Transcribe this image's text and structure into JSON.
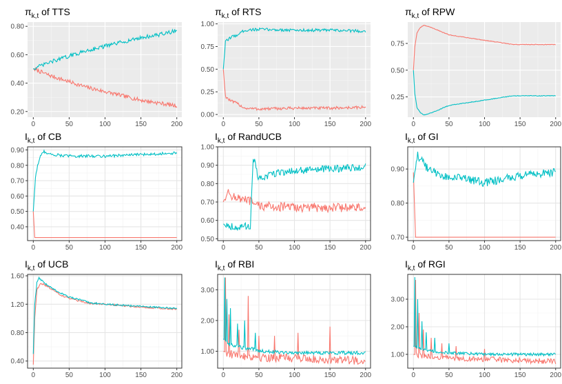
{
  "figure": {
    "colors": {
      "series_a": "#F8766D",
      "series_b": "#00BFC4"
    }
  },
  "chart_data": [
    {
      "type": "line",
      "theme": "gray",
      "title": {
        "symbol": "π",
        "sub": "k,t",
        "rest": " of TTS"
      },
      "xlim": [
        -8,
        207
      ],
      "ylim": [
        0.16,
        0.83
      ],
      "xticks": [
        0,
        50,
        100,
        150,
        200
      ],
      "xtick_labels": [
        "0",
        "50",
        "100",
        "150",
        "200"
      ],
      "yticks": [
        0.2,
        0.4,
        0.6,
        0.8
      ],
      "ytick_labels": [
        "0.20",
        "0.40",
        "0.60",
        "0.80"
      ],
      "series": [
        {
          "color": "#F8766D",
          "points": [
            [
              0,
              0.5
            ],
            [
              25,
              0.45
            ],
            [
              50,
              0.41
            ],
            [
              75,
              0.37
            ],
            [
              100,
              0.34
            ],
            [
              125,
              0.31
            ],
            [
              150,
              0.28
            ],
            [
              175,
              0.26
            ],
            [
              200,
              0.24
            ]
          ],
          "noise": 0.014
        },
        {
          "color": "#00BFC4",
          "points": [
            [
              0,
              0.5
            ],
            [
              25,
              0.55
            ],
            [
              50,
              0.59
            ],
            [
              75,
              0.63
            ],
            [
              100,
              0.66
            ],
            [
              125,
              0.69
            ],
            [
              150,
              0.72
            ],
            [
              175,
              0.74
            ],
            [
              200,
              0.77
            ]
          ],
          "noise": 0.014
        }
      ]
    },
    {
      "type": "line",
      "theme": "gray",
      "title": {
        "symbol": "π",
        "sub": "k,t",
        "rest": " of RTS"
      },
      "xlim": [
        -8,
        207
      ],
      "ylim": [
        -0.03,
        1.02
      ],
      "xticks": [
        0,
        50,
        100,
        150,
        200
      ],
      "xtick_labels": [
        "0",
        "50",
        "100",
        "150",
        "200"
      ],
      "yticks": [
        0,
        0.25,
        0.5,
        0.75,
        1
      ],
      "ytick_labels": [
        "0.00",
        "0.25",
        "0.50",
        "0.75",
        "1.00"
      ],
      "series": [
        {
          "color": "#F8766D",
          "points": [
            [
              0,
              0.5
            ],
            [
              3,
              0.2
            ],
            [
              10,
              0.15
            ],
            [
              20,
              0.12
            ],
            [
              30,
              0.07
            ],
            [
              50,
              0.06
            ],
            [
              100,
              0.07
            ],
            [
              150,
              0.07
            ],
            [
              200,
              0.08
            ]
          ],
          "noise": 0.016
        },
        {
          "color": "#00BFC4",
          "points": [
            [
              0,
              0.5
            ],
            [
              3,
              0.8
            ],
            [
              10,
              0.85
            ],
            [
              20,
              0.88
            ],
            [
              30,
              0.93
            ],
            [
              50,
              0.94
            ],
            [
              100,
              0.93
            ],
            [
              150,
              0.93
            ],
            [
              200,
              0.92
            ]
          ],
          "noise": 0.016
        }
      ]
    },
    {
      "type": "line",
      "theme": "gray",
      "title": {
        "symbol": "π",
        "sub": "k,t",
        "rest": " of RPW"
      },
      "xlim": [
        -8,
        207
      ],
      "ylim": [
        0.06,
        0.95
      ],
      "xticks": [
        0,
        50,
        100,
        150,
        200
      ],
      "xtick_labels": [
        "0",
        "50",
        "100",
        "150",
        "200"
      ],
      "yticks": [
        0.25,
        0.5,
        0.75
      ],
      "ytick_labels": [
        "0.25",
        "0.50",
        "0.75"
      ],
      "series": [
        {
          "color": "#F8766D",
          "points": [
            [
              0,
              0.5
            ],
            [
              2,
              0.72
            ],
            [
              5,
              0.85
            ],
            [
              10,
              0.9
            ],
            [
              15,
              0.92
            ],
            [
              25,
              0.9
            ],
            [
              50,
              0.83
            ],
            [
              100,
              0.78
            ],
            [
              140,
              0.74
            ],
            [
              200,
              0.74
            ]
          ],
          "noise": 0.003
        },
        {
          "color": "#00BFC4",
          "points": [
            [
              0,
              0.5
            ],
            [
              2,
              0.28
            ],
            [
              5,
              0.15
            ],
            [
              10,
              0.1
            ],
            [
              15,
              0.08
            ],
            [
              25,
              0.1
            ],
            [
              50,
              0.17
            ],
            [
              100,
              0.22
            ],
            [
              140,
              0.26
            ],
            [
              200,
              0.26
            ]
          ],
          "noise": 0.003
        }
      ]
    },
    {
      "type": "line",
      "theme": "bw",
      "title": {
        "symbol": "I",
        "sub": "k,t",
        "rest": " of CB"
      },
      "xlim": [
        -8,
        207
      ],
      "ylim": [
        0.31,
        0.92
      ],
      "xticks": [
        0,
        50,
        100,
        150,
        200
      ],
      "xtick_labels": [
        "0",
        "50",
        "100",
        "150",
        "200"
      ],
      "yticks": [
        0.4,
        0.5,
        0.6,
        0.7,
        0.8,
        0.9
      ],
      "ytick_labels": [
        "0.40",
        "0.50",
        "0.60",
        "0.70",
        "0.80",
        "0.90"
      ],
      "series": [
        {
          "color": "#F8766D",
          "points": [
            [
              0,
              0.5
            ],
            [
              2,
              0.33
            ],
            [
              200,
              0.33
            ]
          ],
          "noise": 0
        },
        {
          "color": "#00BFC4",
          "points": [
            [
              0,
              0.5
            ],
            [
              3,
              0.72
            ],
            [
              6,
              0.8
            ],
            [
              10,
              0.86
            ],
            [
              15,
              0.89
            ],
            [
              25,
              0.87
            ],
            [
              50,
              0.86
            ],
            [
              100,
              0.86
            ],
            [
              150,
              0.87
            ],
            [
              200,
              0.88
            ]
          ],
          "noise": 0.009
        }
      ]
    },
    {
      "type": "line",
      "theme": "bw",
      "title": {
        "symbol": "I",
        "sub": "k,t",
        "rest": " of RandUCB"
      },
      "xlim": [
        -8,
        207
      ],
      "ylim": [
        0.49,
        1.0
      ],
      "xticks": [
        0,
        50,
        100,
        150,
        200
      ],
      "xtick_labels": [
        "0",
        "50",
        "100",
        "150",
        "200"
      ],
      "yticks": [
        0.5,
        0.6,
        0.7,
        0.8,
        0.9,
        1.0
      ],
      "ytick_labels": [
        "0.50",
        "0.60",
        "0.70",
        "0.80",
        "0.90",
        "1.00"
      ],
      "series": [
        {
          "color": "#F8766D",
          "points": [
            [
              0,
              0.7
            ],
            [
              5,
              0.75
            ],
            [
              20,
              0.72
            ],
            [
              40,
              0.7
            ],
            [
              45,
              0.68
            ],
            [
              100,
              0.67
            ],
            [
              150,
              0.67
            ],
            [
              200,
              0.67
            ]
          ],
          "noise": 0.025
        },
        {
          "color": "#00BFC4",
          "points": [
            [
              0,
              0.58
            ],
            [
              20,
              0.56
            ],
            [
              38,
              0.57
            ],
            [
              42,
              0.95
            ],
            [
              50,
              0.82
            ],
            [
              75,
              0.86
            ],
            [
              100,
              0.87
            ],
            [
              150,
              0.88
            ],
            [
              200,
              0.89
            ]
          ],
          "noise": 0.02
        }
      ]
    },
    {
      "type": "line",
      "theme": "bw",
      "title": {
        "symbol": "I",
        "sub": "k,t",
        "rest": " of GI"
      },
      "xlim": [
        -8,
        207
      ],
      "ylim": [
        0.69,
        0.965
      ],
      "xticks": [
        0,
        50,
        100,
        150,
        200
      ],
      "xtick_labels": [
        "0",
        "50",
        "100",
        "150",
        "200"
      ],
      "yticks": [
        0.7,
        0.8,
        0.9
      ],
      "ytick_labels": [
        "0.70",
        "0.80",
        "0.90"
      ],
      "series": [
        {
          "color": "#F8766D",
          "points": [
            [
              0,
              0.89
            ],
            [
              3,
              0.7
            ],
            [
              200,
              0.7
            ]
          ],
          "noise": 0
        },
        {
          "color": "#00BFC4",
          "points": [
            [
              0,
              0.86
            ],
            [
              3,
              0.91
            ],
            [
              6,
              0.94
            ],
            [
              10,
              0.93
            ],
            [
              20,
              0.9
            ],
            [
              40,
              0.88
            ],
            [
              75,
              0.87
            ],
            [
              100,
              0.86
            ],
            [
              150,
              0.88
            ],
            [
              200,
              0.89
            ]
          ],
          "noise": 0.012
        }
      ]
    },
    {
      "type": "line",
      "theme": "bw",
      "title": {
        "symbol": "I",
        "sub": "k,t",
        "rest": " of UCB"
      },
      "xlim": [
        -8,
        207
      ],
      "ylim": [
        0.3,
        1.62
      ],
      "xticks": [
        0,
        50,
        100,
        150,
        200
      ],
      "xtick_labels": [
        "0",
        "50",
        "100",
        "150",
        "200"
      ],
      "yticks": [
        0.4,
        0.8,
        1.2,
        1.6
      ],
      "ytick_labels": [
        "0.40",
        "0.80",
        "1.20",
        "1.60"
      ],
      "series": [
        {
          "color": "#F8766D",
          "points": [
            [
              0,
              0.35
            ],
            [
              2,
              1.0
            ],
            [
              5,
              1.4
            ],
            [
              10,
              1.5
            ],
            [
              20,
              1.45
            ],
            [
              40,
              1.32
            ],
            [
              60,
              1.25
            ],
            [
              80,
              1.21
            ],
            [
              100,
              1.2
            ],
            [
              150,
              1.16
            ],
            [
              200,
              1.13
            ]
          ],
          "noise": 0.012
        },
        {
          "color": "#00BFC4",
          "points": [
            [
              0,
              0.5
            ],
            [
              2,
              1.2
            ],
            [
              5,
              1.5
            ],
            [
              8,
              1.57
            ],
            [
              15,
              1.5
            ],
            [
              30,
              1.4
            ],
            [
              50,
              1.3
            ],
            [
              80,
              1.22
            ],
            [
              100,
              1.2
            ],
            [
              150,
              1.17
            ],
            [
              200,
              1.14
            ]
          ],
          "noise": 0.012
        }
      ]
    },
    {
      "type": "line",
      "theme": "bw",
      "title": {
        "symbol": "I",
        "sub": "k,t",
        "rest": " of RBI"
      },
      "xlim": [
        -8,
        207
      ],
      "ylim": [
        0.45,
        3.5
      ],
      "xticks": [
        0,
        50,
        100,
        150,
        200
      ],
      "xtick_labels": [
        "0",
        "50",
        "100",
        "150",
        "200"
      ],
      "yticks": [
        1,
        2,
        3
      ],
      "ytick_labels": [
        "1.00",
        "2.00",
        "3.00"
      ],
      "series": [
        {
          "color": "#F8766D",
          "points": [
            [
              0,
              1.0
            ],
            [
              10,
              0.9
            ],
            [
              30,
              0.85
            ],
            [
              60,
              0.8
            ],
            [
              100,
              0.78
            ],
            [
              150,
              0.72
            ],
            [
              200,
              0.7
            ]
          ],
          "noise": 0.14,
          "spikes": [
            [
              3,
              3.4
            ],
            [
              8,
              2.2
            ],
            [
              22,
              1.7
            ],
            [
              35,
              2.8
            ],
            [
              50,
              1.5
            ],
            [
              72,
              1.5
            ],
            [
              105,
              1.6
            ],
            [
              150,
              1.8
            ]
          ]
        },
        {
          "color": "#00BFC4",
          "points": [
            [
              0,
              1.4
            ],
            [
              10,
              1.2
            ],
            [
              30,
              1.1
            ],
            [
              60,
              1.0
            ],
            [
              100,
              0.95
            ],
            [
              150,
              0.95
            ],
            [
              200,
              0.95
            ]
          ],
          "noise": 0.06,
          "spikes": [
            [
              2,
              3.4
            ],
            [
              5,
              2.7
            ],
            [
              10,
              2.4
            ],
            [
              20,
              1.9
            ],
            [
              30,
              2.0
            ],
            [
              45,
              1.6
            ]
          ]
        }
      ]
    },
    {
      "type": "line",
      "theme": "bw",
      "title": {
        "symbol": "I",
        "sub": "k,t",
        "rest": " of RGI"
      },
      "xlim": [
        -8,
        207
      ],
      "ylim": [
        0.5,
        3.9
      ],
      "xticks": [
        0,
        50,
        100,
        150,
        200
      ],
      "xtick_labels": [
        "0",
        "50",
        "100",
        "150",
        "200"
      ],
      "yticks": [
        1,
        2,
        3
      ],
      "ytick_labels": [
        "1.00",
        "2.00",
        "3.00"
      ],
      "series": [
        {
          "color": "#F8766D",
          "points": [
            [
              0,
              1.0
            ],
            [
              10,
              0.95
            ],
            [
              30,
              0.9
            ],
            [
              60,
              0.85
            ],
            [
              100,
              0.82
            ],
            [
              150,
              0.78
            ],
            [
              200,
              0.75
            ]
          ],
          "noise": 0.1,
          "spikes": [
            [
              3,
              3.7
            ],
            [
              8,
              2.5
            ],
            [
              14,
              1.9
            ],
            [
              25,
              1.6
            ],
            [
              40,
              1.4
            ],
            [
              60,
              1.3
            ],
            [
              100,
              1.2
            ]
          ]
        },
        {
          "color": "#00BFC4",
          "points": [
            [
              0,
              1.3
            ],
            [
              10,
              1.2
            ],
            [
              30,
              1.1
            ],
            [
              60,
              1.05
            ],
            [
              100,
              1.0
            ],
            [
              150,
              1.0
            ],
            [
              200,
              1.0
            ]
          ],
          "noise": 0.05,
          "spikes": [
            [
              2,
              3.8
            ],
            [
              6,
              3.0
            ],
            [
              12,
              2.2
            ],
            [
              18,
              1.8
            ],
            [
              30,
              1.6
            ],
            [
              50,
              1.4
            ]
          ]
        }
      ]
    }
  ]
}
